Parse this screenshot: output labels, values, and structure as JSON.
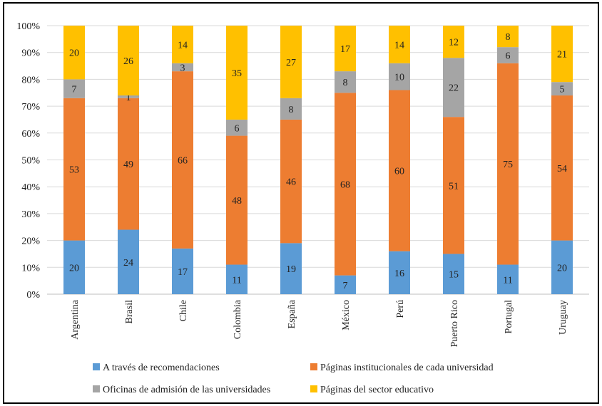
{
  "chart_data": {
    "type": "stacked_bar_100",
    "categories": [
      "Argentina",
      "Brasil",
      "Chile",
      "Colombia",
      "España",
      "México",
      "Perú",
      "Puerto Rico",
      "Portugal",
      "Uruguay"
    ],
    "series": [
      {
        "name": "A través de recomendaciones",
        "color": "#5B9BD5",
        "values": [
          20,
          24,
          17,
          11,
          19,
          7,
          16,
          15,
          11,
          20
        ]
      },
      {
        "name": "Páginas institucionales de cada universidad",
        "color": "#ED7D31",
        "values": [
          53,
          49,
          66,
          48,
          46,
          68,
          60,
          51,
          75,
          54
        ]
      },
      {
        "name": "Oficinas de admisión de las universidades",
        "color": "#A5A5A5",
        "values": [
          7,
          1,
          3,
          6,
          8,
          8,
          10,
          22,
          6,
          5
        ]
      },
      {
        "name": "Páginas del sector educativo",
        "color": "#FFC000",
        "values": [
          20,
          26,
          14,
          35,
          27,
          17,
          14,
          12,
          8,
          21
        ]
      }
    ],
    "y_ticks": [
      "0%",
      "10%",
      "20%",
      "30%",
      "40%",
      "50%",
      "60%",
      "70%",
      "80%",
      "90%",
      "100%"
    ],
    "ylim": [
      0,
      100
    ],
    "grid": true,
    "legend_position": "bottom"
  }
}
